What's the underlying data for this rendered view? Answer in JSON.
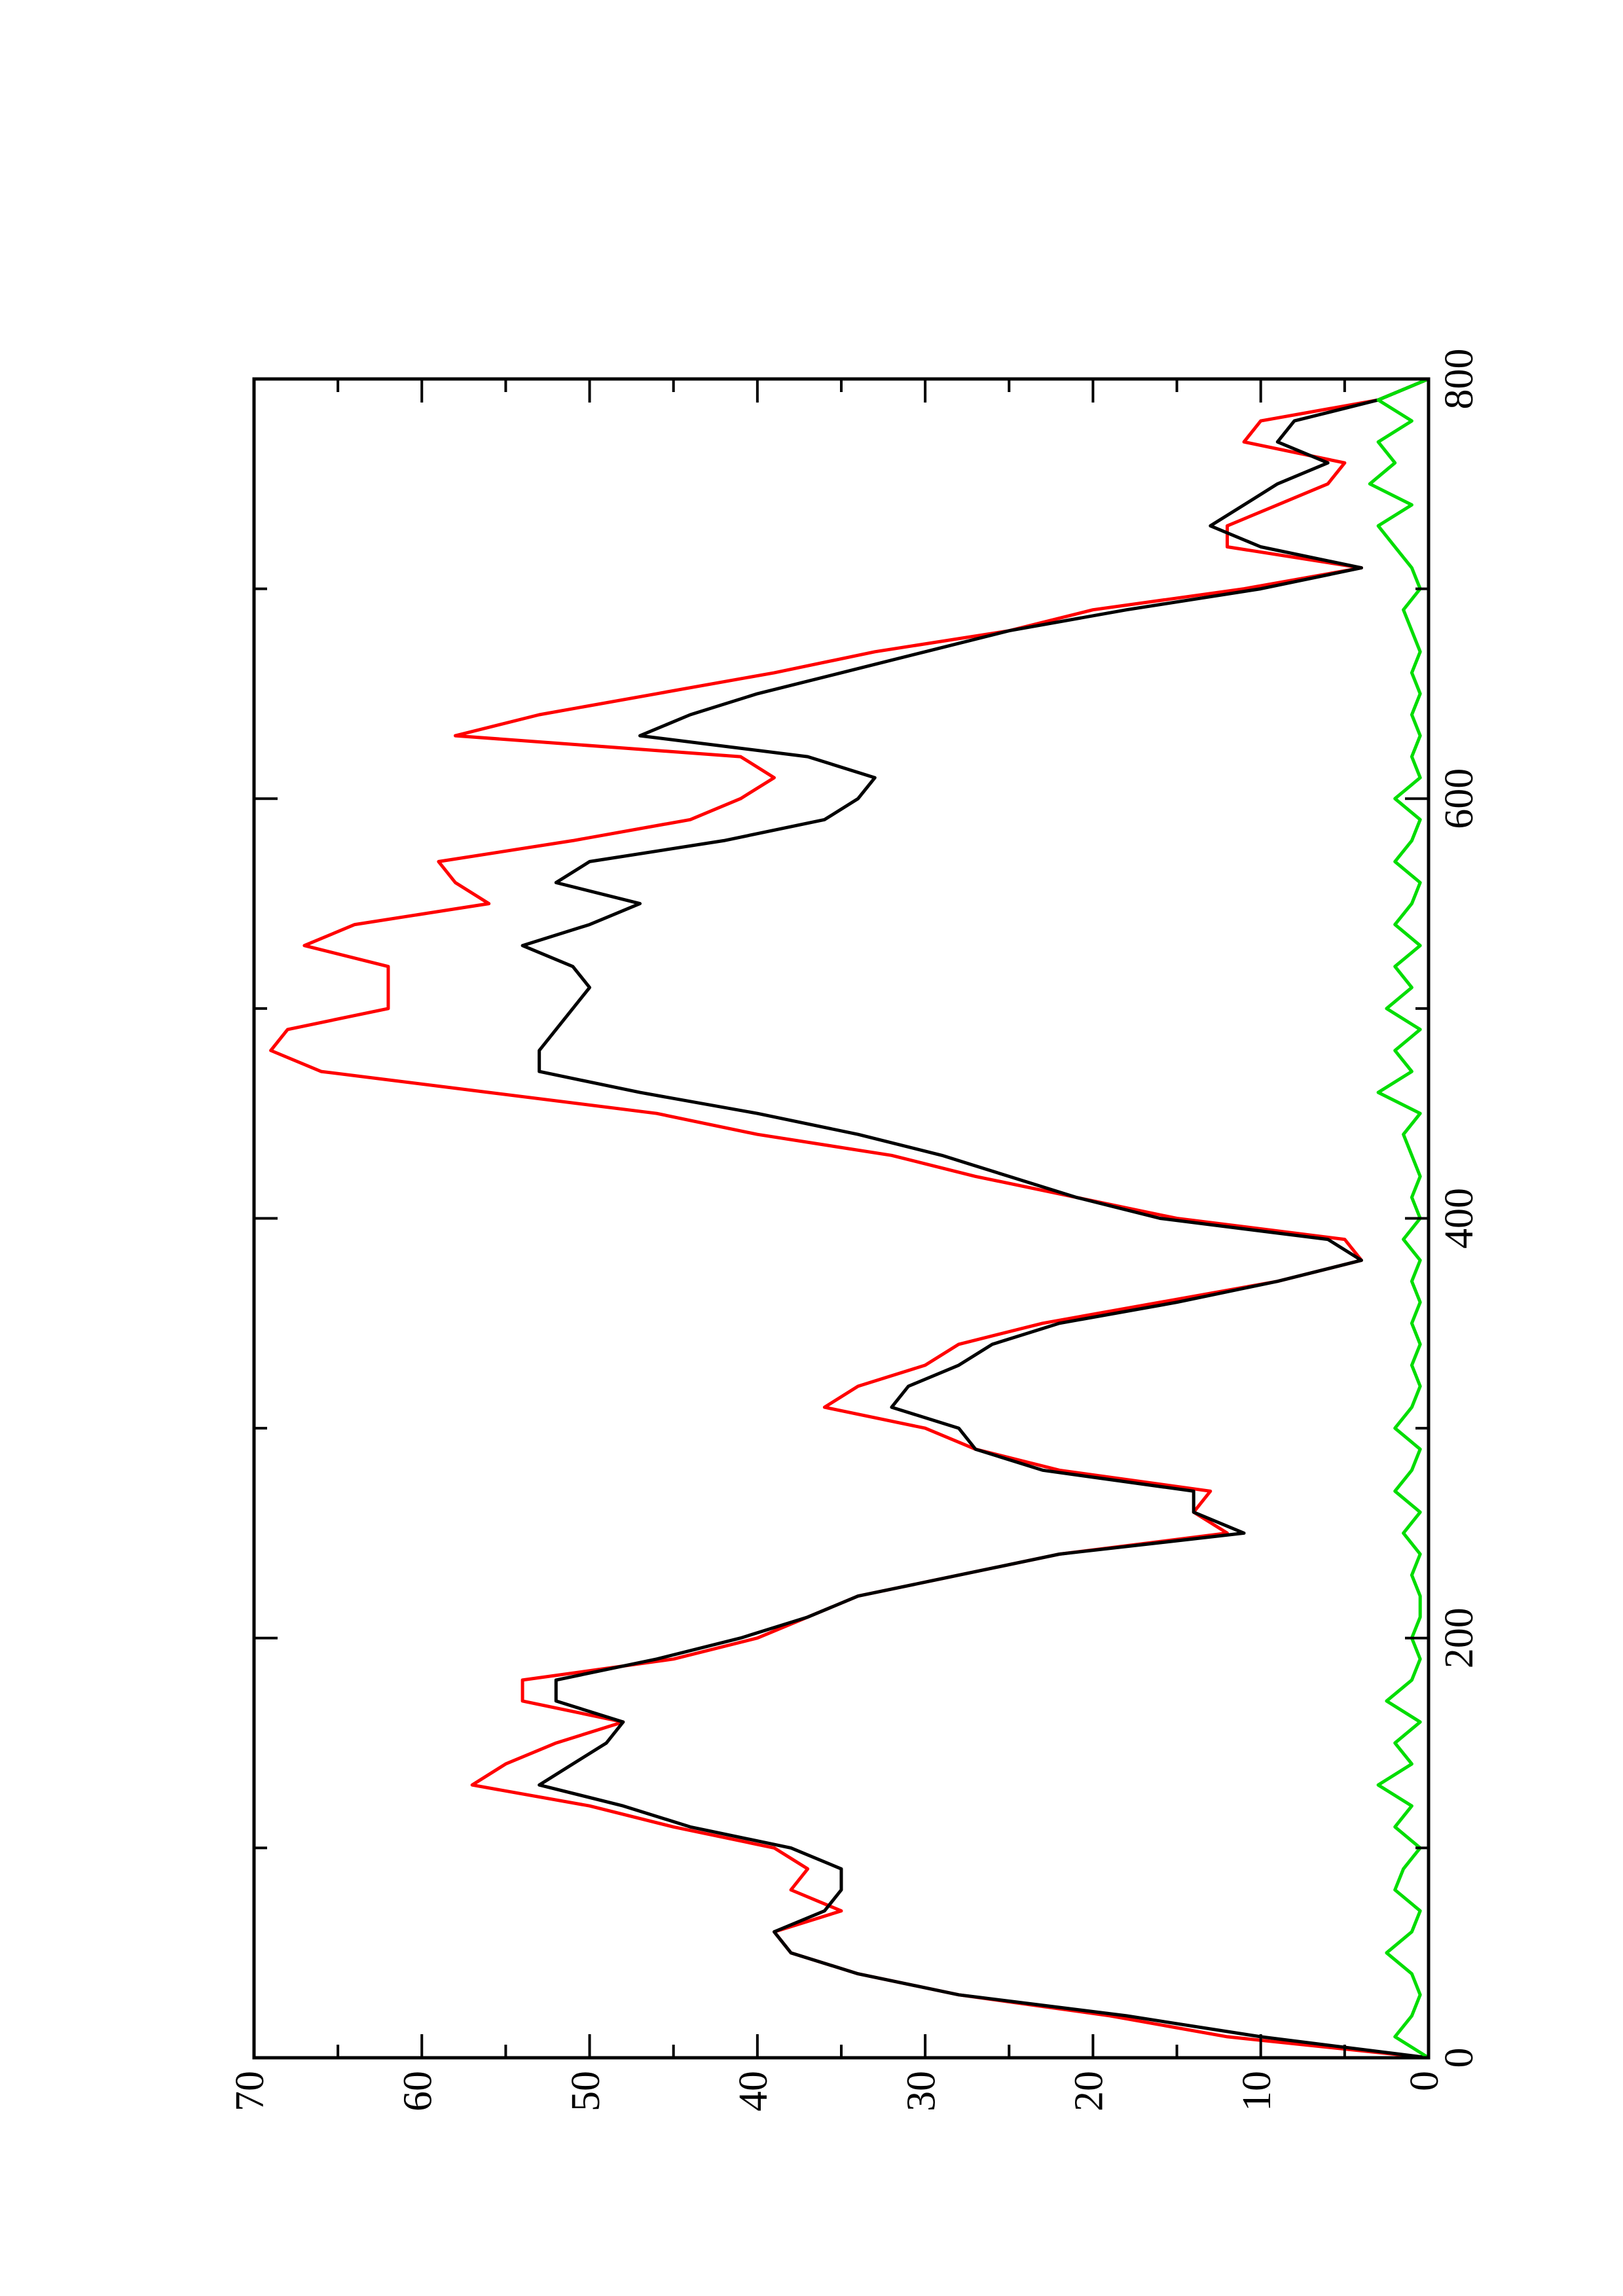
{
  "chart_data": {
    "type": "line",
    "x": [
      0,
      10,
      20,
      30,
      40,
      50,
      60,
      70,
      80,
      90,
      100,
      110,
      120,
      130,
      140,
      150,
      160,
      170,
      180,
      190,
      200,
      210,
      220,
      230,
      240,
      250,
      260,
      270,
      280,
      290,
      300,
      310,
      320,
      330,
      340,
      350,
      360,
      370,
      380,
      390,
      400,
      410,
      420,
      430,
      440,
      450,
      460,
      470,
      480,
      490,
      500,
      510,
      520,
      530,
      540,
      550,
      560,
      570,
      580,
      590,
      600,
      610,
      620,
      630,
      640,
      650,
      660,
      670,
      680,
      690,
      700,
      710,
      720,
      730,
      740,
      750,
      760,
      770,
      780,
      790,
      800
    ],
    "series": [
      {
        "color": "#ff0000",
        "values": [
          0,
          12,
          19,
          28,
          34,
          38,
          39,
          35,
          38,
          37,
          39,
          45,
          50,
          57,
          55,
          52,
          48,
          54,
          54,
          45,
          40,
          37,
          34,
          28,
          22,
          12,
          14,
          13,
          22,
          27,
          30,
          36,
          34,
          30,
          28,
          23,
          16,
          9,
          4,
          5,
          15,
          21,
          27,
          32,
          40,
          46,
          56,
          66,
          69,
          68,
          62,
          62,
          62,
          67,
          64,
          56,
          58,
          59,
          51,
          44,
          41,
          39,
          41,
          58,
          53,
          46,
          39,
          33,
          25,
          20,
          11,
          4,
          12,
          12,
          9,
          6,
          5,
          11,
          10,
          3,
          0
        ]
      },
      {
        "color": "#000000",
        "values": [
          0,
          10,
          18,
          28,
          34,
          38,
          39,
          36,
          35,
          35,
          38,
          44,
          48,
          53,
          51,
          49,
          48,
          52,
          52,
          46,
          41,
          37,
          34,
          28,
          22,
          11,
          14,
          14,
          23,
          27,
          28,
          32,
          31,
          28,
          26,
          22,
          15,
          9,
          4,
          6,
          16,
          21,
          25,
          29,
          34,
          40,
          47,
          53,
          53,
          52,
          51,
          50,
          51,
          54,
          50,
          47,
          52,
          50,
          42,
          36,
          34,
          33,
          37,
          47,
          44,
          40,
          35,
          30,
          25,
          18,
          10,
          4,
          10,
          13,
          11,
          9,
          6,
          9,
          8,
          3,
          0
        ]
      },
      {
        "color": "#00dd00",
        "values": [
          0,
          2,
          1,
          0.5,
          1,
          2.5,
          1,
          0.5,
          2,
          1.5,
          0.5,
          2,
          1,
          3,
          1,
          2,
          0.5,
          2.5,
          1,
          0.5,
          1,
          0.5,
          0.5,
          1,
          0.5,
          1.5,
          0.5,
          2,
          1,
          0.5,
          2,
          1,
          0.5,
          1,
          0.5,
          1,
          0.5,
          1,
          0.5,
          1.5,
          0.5,
          1,
          0.5,
          1,
          1.5,
          0.5,
          3,
          1,
          2,
          0.5,
          2.5,
          1,
          2,
          0.5,
          2,
          1,
          0.5,
          2,
          1,
          0.5,
          2,
          0.5,
          1,
          0.5,
          1,
          0.5,
          1,
          0.5,
          1,
          1.5,
          0.5,
          1,
          2,
          3,
          1,
          3.5,
          2,
          3,
          1,
          3,
          0
        ]
      }
    ],
    "xlim": [
      0,
      800
    ],
    "ylim": [
      0,
      70
    ],
    "xticks": [
      0,
      200,
      400,
      600,
      800
    ],
    "xminorticks": [
      100,
      300,
      500,
      700
    ],
    "yticks": [
      0,
      10,
      20,
      30,
      40,
      50,
      60,
      70
    ],
    "yminorticks": [
      5,
      15,
      25,
      35,
      45,
      55,
      65
    ]
  }
}
